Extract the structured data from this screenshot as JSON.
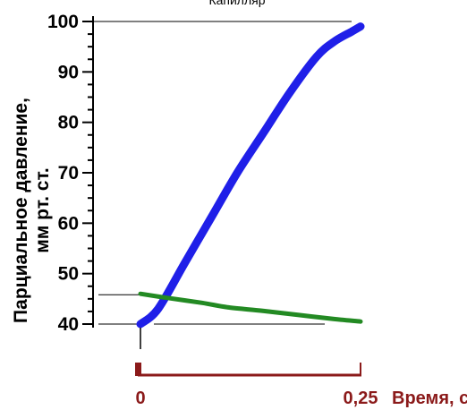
{
  "chart_data": {
    "type": "line",
    "title": "Капилляр",
    "ylabel_line1": "Парциальное давление,",
    "ylabel_line2": "мм рт. ст.",
    "xlabel": "Время, с",
    "x_tick_labels": [
      "0",
      "0,25"
    ],
    "x_ticks": [
      0,
      0.25
    ],
    "y_ticks": [
      40,
      50,
      60,
      70,
      80,
      90,
      100
    ],
    "y_tick_labels": [
      "40",
      "50",
      "60",
      "70",
      "80",
      "90",
      "100"
    ],
    "xlim": [
      0,
      0.25
    ],
    "ylim": [
      40,
      100
    ],
    "reference_lines": [
      {
        "y": 100,
        "x": [
          0,
          0.25
        ]
      },
      {
        "y": 46,
        "x": [
          -0.04,
          0
        ]
      },
      {
        "y": 40,
        "x": [
          -0.04,
          0.0
        ]
      }
    ],
    "series": [
      {
        "color": "#1f1fe8",
        "x": [
          0,
          0.02,
          0.05,
          0.08,
          0.11,
          0.14,
          0.17,
          0.2,
          0.22,
          0.24,
          0.25
        ],
        "y": [
          40,
          43,
          52,
          61,
          70,
          78,
          86,
          93,
          96,
          98,
          99
        ]
      },
      {
        "color": "#238a23",
        "x": [
          0,
          0.03,
          0.07,
          0.1,
          0.14,
          0.18,
          0.22,
          0.25
        ],
        "y": [
          46,
          45.2,
          44.2,
          43.3,
          42.6,
          41.8,
          41,
          40.5
        ]
      }
    ]
  }
}
